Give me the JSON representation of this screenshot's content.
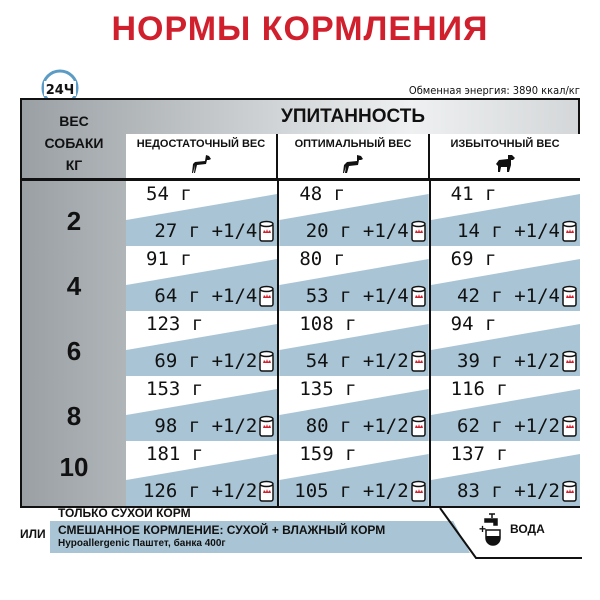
{
  "title": "НОРМЫ КОРМЛЕНИЯ",
  "clock_label": "24Ч",
  "energy": "Обменная энергия: 3890 ккал/кг",
  "header": "УПИТАННОСТЬ",
  "weight_label": [
    "ВЕС",
    "СОБАКИ",
    "КГ"
  ],
  "columns": [
    "НЕДОСТАТОЧНЫЙ ВЕС",
    "ОПТИМАЛЬНЫЙ ВЕС",
    "ИЗБЫТОЧНЫЙ ВЕС"
  ],
  "rows": [
    {
      "weight": "2",
      "cells": [
        {
          "dry": "54 г",
          "mix": "27 г +1/4"
        },
        {
          "dry": "48 г",
          "mix": "20 г +1/4"
        },
        {
          "dry": "41 г",
          "mix": "14 г +1/4"
        }
      ]
    },
    {
      "weight": "4",
      "cells": [
        {
          "dry": "91 г",
          "mix": "64 г +1/4"
        },
        {
          "dry": "80 г",
          "mix": "53 г +1/4"
        },
        {
          "dry": "69 г",
          "mix": "42 г +1/4"
        }
      ]
    },
    {
      "weight": "6",
      "cells": [
        {
          "dry": "123 г",
          "mix": "69 г +1/2"
        },
        {
          "dry": "108 г",
          "mix": "54 г +1/2"
        },
        {
          "dry": "94 г",
          "mix": "39 г +1/2"
        }
      ]
    },
    {
      "weight": "8",
      "cells": [
        {
          "dry": "153 г",
          "mix": "98 г +1/2"
        },
        {
          "dry": "135 г",
          "mix": "80 г +1/2"
        },
        {
          "dry": "116 г",
          "mix": "62 г +1/2"
        }
      ]
    },
    {
      "weight": "10",
      "cells": [
        {
          "dry": "181 г",
          "mix": "126 г +1/2"
        },
        {
          "dry": "159 г",
          "mix": "105 г +1/2"
        },
        {
          "dry": "137 г",
          "mix": "83 г +1/2"
        }
      ]
    }
  ],
  "legend": {
    "dry_only": "ТОЛЬКО СУХОЙ КОРМ",
    "or": "ИЛИ",
    "mixed": "СМЕШАННОЕ КОРМЛЕНИЕ: СУХОЙ + ВЛАЖНЫЙ КОРМ",
    "product": "Hypoallergenic Паштет, банка 400г",
    "water": "ВОДА",
    "plus": "+"
  },
  "colors": {
    "title": "#d0202e",
    "mix_band": "#a9c5d5"
  }
}
